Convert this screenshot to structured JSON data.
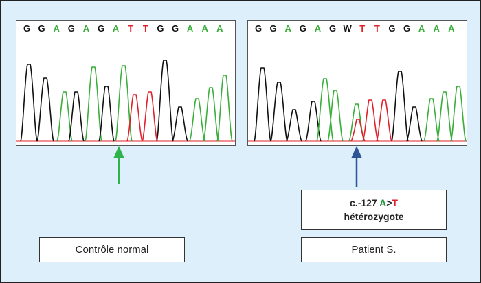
{
  "colors": {
    "background": "#dceffb",
    "base_G": "#111111",
    "base_A": "#3aae3a",
    "base_T": "#e0202a",
    "base_W": "#111111",
    "normal_arrow": "#2db34a",
    "patient_arrow": "#2f5597",
    "mutation_A": "#1e8f3a",
    "mutation_T": "#e0202a"
  },
  "panels": [
    {
      "id": "control",
      "sequence": [
        "G",
        "G",
        "A",
        "G",
        "A",
        "G",
        "A",
        "T",
        "T",
        "G",
        "G",
        "A",
        "A",
        "A"
      ],
      "label": "Contrôle normal",
      "arrow_color": "normal_arrow"
    },
    {
      "id": "patient",
      "sequence": [
        "G",
        "G",
        "A",
        "G",
        "A",
        "G",
        "W",
        "T",
        "T",
        "G",
        "G",
        "A",
        "A",
        "A"
      ],
      "label": "Patient S.",
      "arrow_color": "patient_arrow"
    }
  ],
  "mutation": {
    "prefix": "c.-127 ",
    "ref": "A",
    "sep": ">",
    "alt": "T",
    "zygosity": "hétérozygote"
  }
}
